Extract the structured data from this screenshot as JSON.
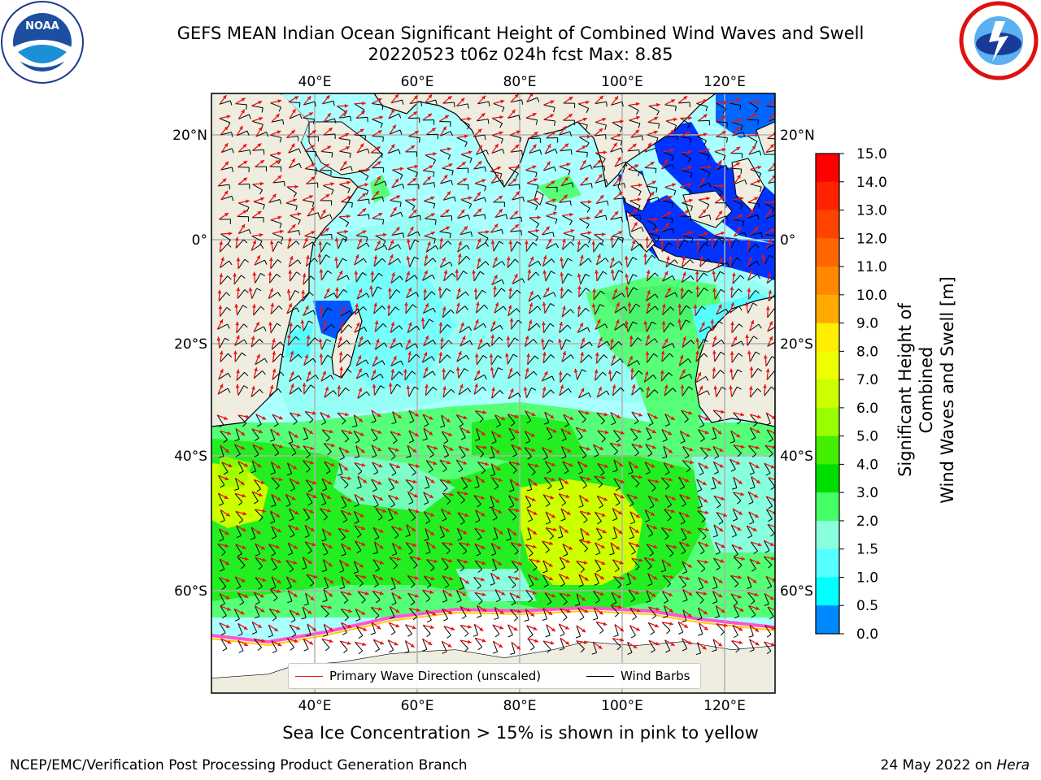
{
  "header": {
    "title_line1": "GEFS MEAN Indian Ocean Significant Height of Combined Wind Waves and Swell",
    "title_line2": "20220523 t06z 024h fcst   Max: 8.85"
  },
  "logos": {
    "left": {
      "icon": "noaa-logo",
      "text": "NOAA"
    },
    "right": {
      "icon": "nws-logo"
    }
  },
  "map": {
    "lon_ticks": [
      "40°E",
      "60°E",
      "80°E",
      "100°E",
      "120°E"
    ],
    "lat_ticks_left": [
      "20°N",
      "0°",
      "20°S",
      "40°S",
      "60°S"
    ],
    "lat_ticks_right": [
      "20°N",
      "0°",
      "20°S",
      "40°S",
      "60°S"
    ],
    "colors": {
      "land": "#efede0",
      "ocean_low": "#aaffff",
      "ocean_mid": "#55ffff",
      "green_light": "#55ff77",
      "green": "#22ee22",
      "yellow_green": "#ccff00",
      "blue": "#0033ff",
      "wave_arrow": "#ee1111",
      "ice": "#ffffff"
    }
  },
  "legend": {
    "primary_wave": "Primary Wave Direction (unscaled)",
    "wind_barbs": "Wind Barbs"
  },
  "colorbar": {
    "label_line1": "Significant Height of Combined",
    "label_line2": "Wind Waves and Swell [m]",
    "ticks": [
      "15.0",
      "14.0",
      "13.0",
      "12.0",
      "11.0",
      "10.0",
      "9.0",
      "8.0",
      "7.0",
      "6.0",
      "5.0",
      "4.0",
      "3.0",
      "2.0",
      "1.5",
      "1.0",
      "0.5",
      "0.0"
    ],
    "colors": [
      "#ff0000",
      "#ff2200",
      "#ff4400",
      "#ff6600",
      "#ff8800",
      "#ffaa00",
      "#ffee00",
      "#eeff00",
      "#ccff00",
      "#99ff00",
      "#44ee00",
      "#00dd00",
      "#44ff66",
      "#88ffdd",
      "#55ffff",
      "#00ffff",
      "#0088ff",
      "#0000ff"
    ]
  },
  "footer": {
    "sea_ice_note": "Sea Ice Concentration > 15% is shown in pink to yellow",
    "producer": "NCEP/EMC/Verification Post Processing Product Generation Branch",
    "date": "24 May 2022 on",
    "host": "Hera"
  }
}
